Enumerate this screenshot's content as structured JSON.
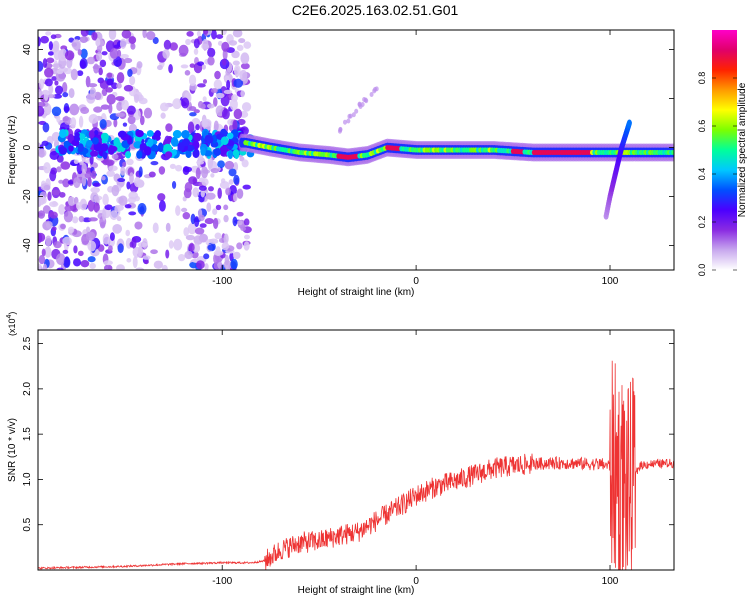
{
  "title": "C2E6.2025.163.02.51.G01",
  "chart_data": [
    {
      "type": "heatmap",
      "xlabel": "Height of straight line (km)",
      "ylabel": "Frequency (Hz)",
      "xlim": [
        -195,
        133
      ],
      "ylim": [
        -50,
        48
      ],
      "xticks": [
        -100,
        0,
        100
      ],
      "yticks": [
        -40,
        -20,
        0,
        20,
        40
      ],
      "colorbar": {
        "label": "Normalized spectral amplitude",
        "range": [
          0,
          1
        ],
        "ticks": [
          "0.0",
          "0.2",
          "0.4",
          "0.6",
          "0.8"
        ],
        "colors": [
          "#ffffff",
          "#c8a8ee",
          "#8a2be2",
          "#4b00ff",
          "#0050ff",
          "#00c8ff",
          "#00ff9a",
          "#7cff00",
          "#ffff00",
          "#ff9a00",
          "#ff2200",
          "#e0006a",
          "#ff00c8"
        ]
      },
      "ridge": {
        "description_points_x": [
          -88,
          -75,
          -60,
          -45,
          -35,
          -25,
          -15,
          0,
          20,
          40,
          60,
          80,
          95
        ],
        "frequency_hz": [
          2,
          0,
          -2,
          -3,
          -4,
          -3,
          0,
          -1,
          -1,
          -1,
          -2,
          -2,
          -2
        ]
      },
      "chirp_feature": {
        "x": [
          98,
          100,
          103,
          106,
          110
        ],
        "frequency_hz": [
          -28,
          -20,
          -10,
          0,
          10
        ]
      }
    },
    {
      "type": "line",
      "xlabel": "Height of straight line (km)",
      "ylabel": "SNR (10 * v/v)",
      "y_multiplier_label": "(x10",
      "y_multiplier_exp": "4",
      "xlim": [
        -195,
        133
      ],
      "ylim": [
        0,
        2.65
      ],
      "xticks": [
        -100,
        0,
        100
      ],
      "yticks": [
        "0.5",
        "1.0",
        "1.5",
        "2.0",
        "2.5"
      ],
      "series_color": "#ee3333",
      "trend": {
        "x": [
          -195,
          -150,
          -120,
          -100,
          -85,
          -78,
          -70,
          -60,
          -50,
          -40,
          -30,
          -20,
          -10,
          0,
          10,
          20,
          30,
          40,
          50,
          60,
          70,
          80,
          90,
          95,
          100,
          103,
          106,
          110,
          115,
          120,
          133
        ],
        "y": [
          0.02,
          0.04,
          0.07,
          0.08,
          0.08,
          0.1,
          0.22,
          0.3,
          0.32,
          0.38,
          0.42,
          0.55,
          0.68,
          0.82,
          0.92,
          0.98,
          1.05,
          1.12,
          1.15,
          1.17,
          1.18,
          1.18,
          1.17,
          1.17,
          1.15,
          1.1,
          1.0,
          0.85,
          1.15,
          1.17,
          1.18
        ]
      },
      "noise_amplitude": [
        {
          "from": -195,
          "to": -78,
          "amp": 0.01
        },
        {
          "from": -78,
          "to": 60,
          "amp": 0.12
        },
        {
          "from": 60,
          "to": 100,
          "amp": 0.07
        },
        {
          "from": 100,
          "to": 113,
          "amp": 1.2
        },
        {
          "from": 113,
          "to": 133,
          "amp": 0.05
        }
      ]
    }
  ]
}
